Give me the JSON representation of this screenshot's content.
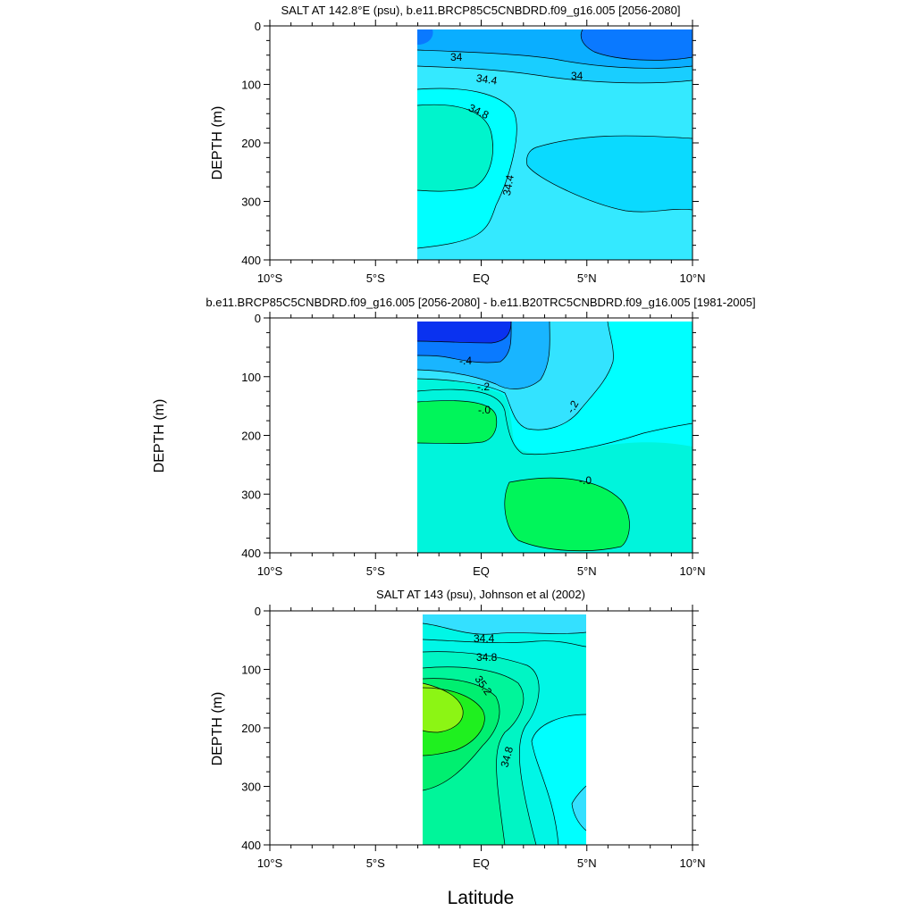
{
  "chart_data": [
    {
      "type": "contour",
      "title": "SALT AT 142.8°E (psu), b.e11.BRCP85C5CNBDRD.f09_g16.005 [2056-2080]",
      "ylabel": "DEPTH (m)",
      "xlabel": "",
      "x_ticks": [
        "10°S",
        "5°S",
        "EQ",
        "5°N",
        "10°N"
      ],
      "y_ticks": [
        "0",
        "100",
        "200",
        "300",
        "400"
      ],
      "xlim": [
        -10,
        10
      ],
      "ylim": [
        0,
        400
      ],
      "data_extent_lat": [
        -3,
        10
      ],
      "contour_labels": [
        "34",
        "34",
        "34.4",
        "34.8",
        "34.4"
      ]
    },
    {
      "type": "contour",
      "title": "b.e11.BRCP85C5CNBDRD.f09_g16.005 [2056-2080] - b.e11.B20TRC5CNBDRD.f09_g16.005 [1981-2005]",
      "ylabel": "DEPTH (m)",
      "xlabel": "",
      "x_ticks": [
        "10°S",
        "5°S",
        "EQ",
        "5°N",
        "10°N"
      ],
      "y_ticks": [
        "0",
        "100",
        "200",
        "300",
        "400"
      ],
      "xlim": [
        -10,
        10
      ],
      "ylim": [
        0,
        400
      ],
      "data_extent_lat": [
        -3,
        10
      ],
      "contour_labels": [
        "-.4",
        "-.2",
        "-.0",
        "-.2",
        "-.0"
      ]
    },
    {
      "type": "contour",
      "title": "SALT AT 143 (psu), Johnson et al (2002)",
      "ylabel": "DEPTH (m)",
      "xlabel": "Latitude",
      "x_ticks": [
        "10°S",
        "5°S",
        "EQ",
        "5°N",
        "10°N"
      ],
      "y_ticks": [
        "0",
        "100",
        "200",
        "300",
        "400"
      ],
      "xlim": [
        -10,
        10
      ],
      "ylim": [
        0,
        400
      ],
      "data_extent_lat": [
        -2.8,
        5
      ],
      "contour_labels": [
        "34.4",
        "34.8",
        "35.2",
        "34.8"
      ]
    }
  ]
}
